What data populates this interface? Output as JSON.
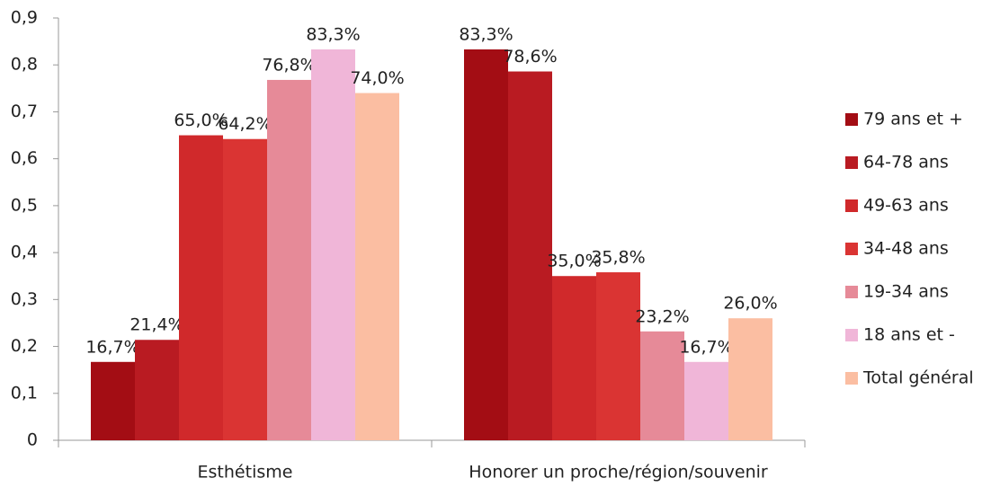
{
  "chart_data": {
    "type": "bar",
    "categories": [
      "Esthétisme",
      "Honorer un proche/région/souvenir"
    ],
    "series": [
      {
        "name": "79 ans et +",
        "color": "#a30d14",
        "values": [
          0.167,
          0.833
        ],
        "value_labels": [
          "16,7%",
          "83,3%"
        ]
      },
      {
        "name": "64-78 ans",
        "color": "#b91b22",
        "values": [
          0.214,
          0.786
        ],
        "value_labels": [
          "21,4%",
          "78,6%"
        ]
      },
      {
        "name": "49-63 ans",
        "color": "#d0292b",
        "values": [
          0.65,
          0.35
        ],
        "value_labels": [
          "65,0%",
          "35,0%"
        ]
      },
      {
        "name": "34-48 ans",
        "color": "#da3433",
        "values": [
          0.642,
          0.358
        ],
        "value_labels": [
          "64,2%",
          "35,8%"
        ]
      },
      {
        "name": "19-34 ans",
        "color": "#e68a98",
        "values": [
          0.768,
          0.232
        ],
        "value_labels": [
          "76,8%",
          "23,2%"
        ]
      },
      {
        "name": "18 ans et -",
        "color": "#f0b6d8",
        "values": [
          0.833,
          0.167
        ],
        "value_labels": [
          "83,3%",
          "16,7%"
        ]
      },
      {
        "name": "Total général",
        "color": "#fbbea2",
        "values": [
          0.74,
          0.26
        ],
        "value_labels": [
          "74,0%",
          "26,0%"
        ]
      }
    ],
    "ylim": [
      0,
      0.9
    ],
    "yticks": [
      0,
      {
        "value": 0.1,
        "label": "0,1"
      },
      {
        "value": 0.2,
        "label": "0,2"
      },
      {
        "value": 0.3,
        "label": "0,3"
      },
      {
        "value": 0.4,
        "label": "0,4"
      },
      {
        "value": 0.5,
        "label": "0,5"
      },
      {
        "value": 0.6,
        "label": "0,6"
      },
      {
        "value": 0.7,
        "label": "0,7"
      },
      {
        "value": 0.8,
        "label": "0,8"
      },
      {
        "value": 0.9,
        "label": "0,9"
      }
    ],
    "legend": "right",
    "grid": false
  }
}
